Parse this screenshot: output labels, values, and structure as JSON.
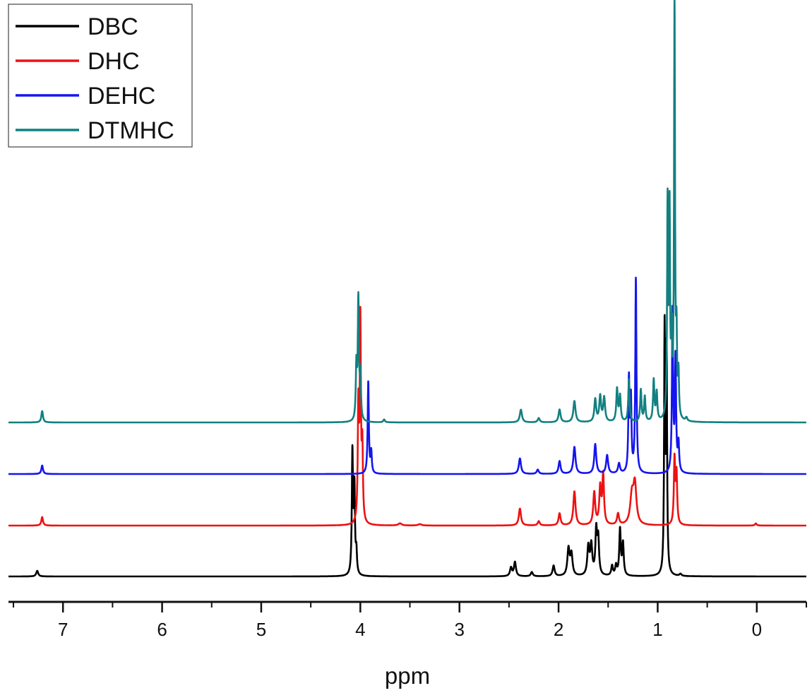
{
  "chart_data": {
    "type": "line",
    "title": "",
    "xlabel": "ppm",
    "ylabel": "",
    "xlim": [
      7.55,
      -0.5
    ],
    "x_reversed": true,
    "x_ticks": [
      7,
      6,
      5,
      4,
      3,
      2,
      1,
      0
    ],
    "x_tick_labels": [
      "7",
      "6",
      "5",
      "4",
      "3",
      "2",
      "1",
      "0"
    ],
    "y_axis_shown": false,
    "grid": false,
    "stacked": true,
    "legend_position": "top-left",
    "series": [
      {
        "name": "DBC",
        "color": "#000000",
        "offset": 0,
        "peaks": [
          {
            "ppm": 7.26,
            "height": 8,
            "width": 0.012
          },
          {
            "ppm": 4.08,
            "height": 172,
            "width": 0.007
          },
          {
            "ppm": 4.06,
            "height": 120,
            "width": 0.007
          },
          {
            "ppm": 4.04,
            "height": 30,
            "width": 0.007
          },
          {
            "ppm": 2.48,
            "height": 12,
            "width": 0.012
          },
          {
            "ppm": 2.44,
            "height": 20,
            "width": 0.012
          },
          {
            "ppm": 2.27,
            "height": 6,
            "width": 0.012
          },
          {
            "ppm": 2.05,
            "height": 15,
            "width": 0.012
          },
          {
            "ppm": 1.9,
            "height": 38,
            "width": 0.013
          },
          {
            "ppm": 1.87,
            "height": 30,
            "width": 0.013
          },
          {
            "ppm": 1.7,
            "height": 40,
            "width": 0.012
          },
          {
            "ppm": 1.67,
            "height": 42,
            "width": 0.012
          },
          {
            "ppm": 1.62,
            "height": 62,
            "width": 0.01
          },
          {
            "ppm": 1.6,
            "height": 50,
            "width": 0.01
          },
          {
            "ppm": 1.46,
            "height": 14,
            "width": 0.01
          },
          {
            "ppm": 1.42,
            "height": 14,
            "width": 0.01
          },
          {
            "ppm": 1.38,
            "height": 65,
            "width": 0.009
          },
          {
            "ppm": 1.35,
            "height": 45,
            "width": 0.009
          },
          {
            "ppm": 0.93,
            "height": 345,
            "width": 0.006
          },
          {
            "ppm": 0.91,
            "height": 310,
            "width": 0.006
          },
          {
            "ppm": 0.77,
            "height": 3,
            "width": 0.012
          }
        ]
      },
      {
        "name": "DHC",
        "color": "#ee1111",
        "offset": 72,
        "peaks": [
          {
            "ppm": 7.21,
            "height": 12,
            "width": 0.01
          },
          {
            "ppm": 4.02,
            "height": 160,
            "width": 0.007
          },
          {
            "ppm": 4.0,
            "height": 282,
            "width": 0.007
          },
          {
            "ppm": 3.98,
            "height": 100,
            "width": 0.007
          },
          {
            "ppm": 3.6,
            "height": 3,
            "width": 0.02
          },
          {
            "ppm": 3.4,
            "height": 2,
            "width": 0.02
          },
          {
            "ppm": 2.39,
            "height": 24,
            "width": 0.013
          },
          {
            "ppm": 2.2,
            "height": 6,
            "width": 0.012
          },
          {
            "ppm": 1.99,
            "height": 17,
            "width": 0.012
          },
          {
            "ppm": 1.84,
            "height": 48,
            "width": 0.013
          },
          {
            "ppm": 1.64,
            "height": 46,
            "width": 0.012
          },
          {
            "ppm": 1.58,
            "height": 52,
            "width": 0.011
          },
          {
            "ppm": 1.55,
            "height": 70,
            "width": 0.01
          },
          {
            "ppm": 1.4,
            "height": 16,
            "width": 0.012
          },
          {
            "ppm": 1.26,
            "height": 40,
            "width": 0.02
          },
          {
            "ppm": 1.23,
            "height": 55,
            "width": 0.018
          },
          {
            "ppm": 0.83,
            "height": 92,
            "width": 0.008
          },
          {
            "ppm": 0.81,
            "height": 70,
            "width": 0.008
          },
          {
            "ppm": 0.01,
            "height": 3,
            "width": 0.01
          }
        ]
      },
      {
        "name": "DEHC",
        "color": "#1515ee",
        "offset": 145,
        "peaks": [
          {
            "ppm": 7.21,
            "height": 12,
            "width": 0.01
          },
          {
            "ppm": 3.92,
            "height": 130,
            "width": 0.007
          },
          {
            "ppm": 3.89,
            "height": 30,
            "width": 0.007
          },
          {
            "ppm": 2.39,
            "height": 22,
            "width": 0.013
          },
          {
            "ppm": 2.21,
            "height": 6,
            "width": 0.012
          },
          {
            "ppm": 1.99,
            "height": 18,
            "width": 0.012
          },
          {
            "ppm": 1.84,
            "height": 38,
            "width": 0.013
          },
          {
            "ppm": 1.63,
            "height": 42,
            "width": 0.012
          },
          {
            "ppm": 1.51,
            "height": 26,
            "width": 0.012
          },
          {
            "ppm": 1.39,
            "height": 14,
            "width": 0.012
          },
          {
            "ppm": 1.29,
            "height": 130,
            "width": 0.007
          },
          {
            "ppm": 1.27,
            "height": 100,
            "width": 0.007
          },
          {
            "ppm": 1.22,
            "height": 275,
            "width": 0.007
          },
          {
            "ppm": 0.85,
            "height": 230,
            "width": 0.007
          },
          {
            "ppm": 0.82,
            "height": 160,
            "width": 0.007
          },
          {
            "ppm": 0.79,
            "height": 40,
            "width": 0.008
          }
        ]
      },
      {
        "name": "DTMHC",
        "color": "#128080",
        "offset": 218,
        "peaks": [
          {
            "ppm": 7.21,
            "height": 16,
            "width": 0.01
          },
          {
            "ppm": 4.04,
            "height": 75,
            "width": 0.007
          },
          {
            "ppm": 4.02,
            "height": 170,
            "width": 0.007
          },
          {
            "ppm": 4.0,
            "height": 60,
            "width": 0.007
          },
          {
            "ppm": 3.76,
            "height": 4,
            "width": 0.01
          },
          {
            "ppm": 2.38,
            "height": 18,
            "width": 0.013
          },
          {
            "ppm": 2.2,
            "height": 6,
            "width": 0.012
          },
          {
            "ppm": 1.99,
            "height": 18,
            "width": 0.012
          },
          {
            "ppm": 1.84,
            "height": 30,
            "width": 0.013
          },
          {
            "ppm": 1.63,
            "height": 32,
            "width": 0.011
          },
          {
            "ppm": 1.58,
            "height": 36,
            "width": 0.011
          },
          {
            "ppm": 1.54,
            "height": 34,
            "width": 0.011
          },
          {
            "ppm": 1.41,
            "height": 46,
            "width": 0.009
          },
          {
            "ppm": 1.38,
            "height": 36,
            "width": 0.009
          },
          {
            "ppm": 1.29,
            "height": 60,
            "width": 0.008
          },
          {
            "ppm": 1.17,
            "height": 45,
            "width": 0.008
          },
          {
            "ppm": 1.13,
            "height": 35,
            "width": 0.008
          },
          {
            "ppm": 1.04,
            "height": 58,
            "width": 0.008
          },
          {
            "ppm": 1.01,
            "height": 40,
            "width": 0.008
          },
          {
            "ppm": 0.9,
            "height": 300,
            "width": 0.006
          },
          {
            "ppm": 0.88,
            "height": 285,
            "width": 0.006
          },
          {
            "ppm": 0.86,
            "height": 100,
            "width": 0.006
          },
          {
            "ppm": 0.83,
            "height": 580,
            "width": 0.006
          },
          {
            "ppm": 0.81,
            "height": 105,
            "width": 0.006
          },
          {
            "ppm": 0.79,
            "height": 60,
            "width": 0.006
          },
          {
            "ppm": 0.71,
            "height": 5,
            "width": 0.01
          }
        ]
      }
    ]
  }
}
